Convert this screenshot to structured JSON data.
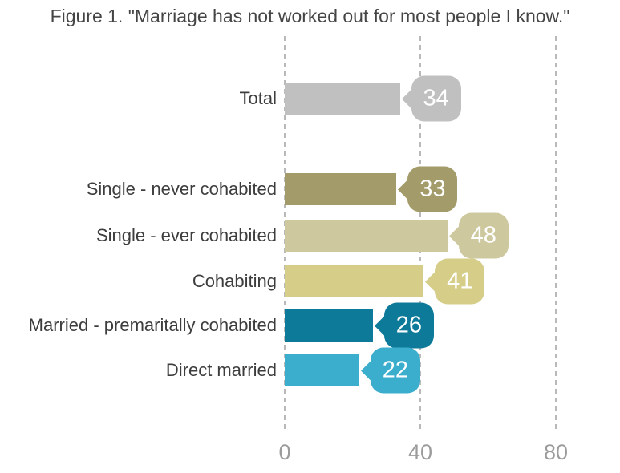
{
  "title": "Figure 1. \"Marriage has not worked out for most people I know.\"",
  "chart_data": {
    "type": "bar",
    "orientation": "horizontal",
    "title": "Figure 1. \"Marriage has not worked out for most people I know.\"",
    "categories": [
      "Total",
      "Single - never cohabited",
      "Single - ever cohabited",
      "Cohabiting",
      "Married - premaritally cohabited",
      "Direct married"
    ],
    "values": [
      34,
      33,
      48,
      41,
      26,
      22
    ],
    "rows": [
      {
        "label": "Total",
        "value": 34,
        "color": "#c0c0c0"
      },
      {
        "label": "Single - never cohabited",
        "value": 33,
        "color": "#a39b69"
      },
      {
        "label": "Single - ever cohabited",
        "value": 48,
        "color": "#cec89e"
      },
      {
        "label": "Cohabiting",
        "value": 41,
        "color": "#d5cd88"
      },
      {
        "label": "Married - premaritally cohabited",
        "value": 26,
        "color": "#0e7a99"
      },
      {
        "label": "Direct married",
        "value": 22,
        "color": "#3badcd"
      }
    ],
    "xlabel": "",
    "ylabel": "",
    "xlim": [
      0,
      80
    ],
    "x_ticks": [
      "0",
      "40",
      "80"
    ],
    "grid": "vertical-dashed",
    "gridline_color": "#b9b9b9",
    "value_label_style": "speech-bubble",
    "value_text_color": "#ffffff",
    "category_text_color": "#3d3d3d",
    "tick_text_color": "#9b9b9b",
    "legend": "none"
  }
}
